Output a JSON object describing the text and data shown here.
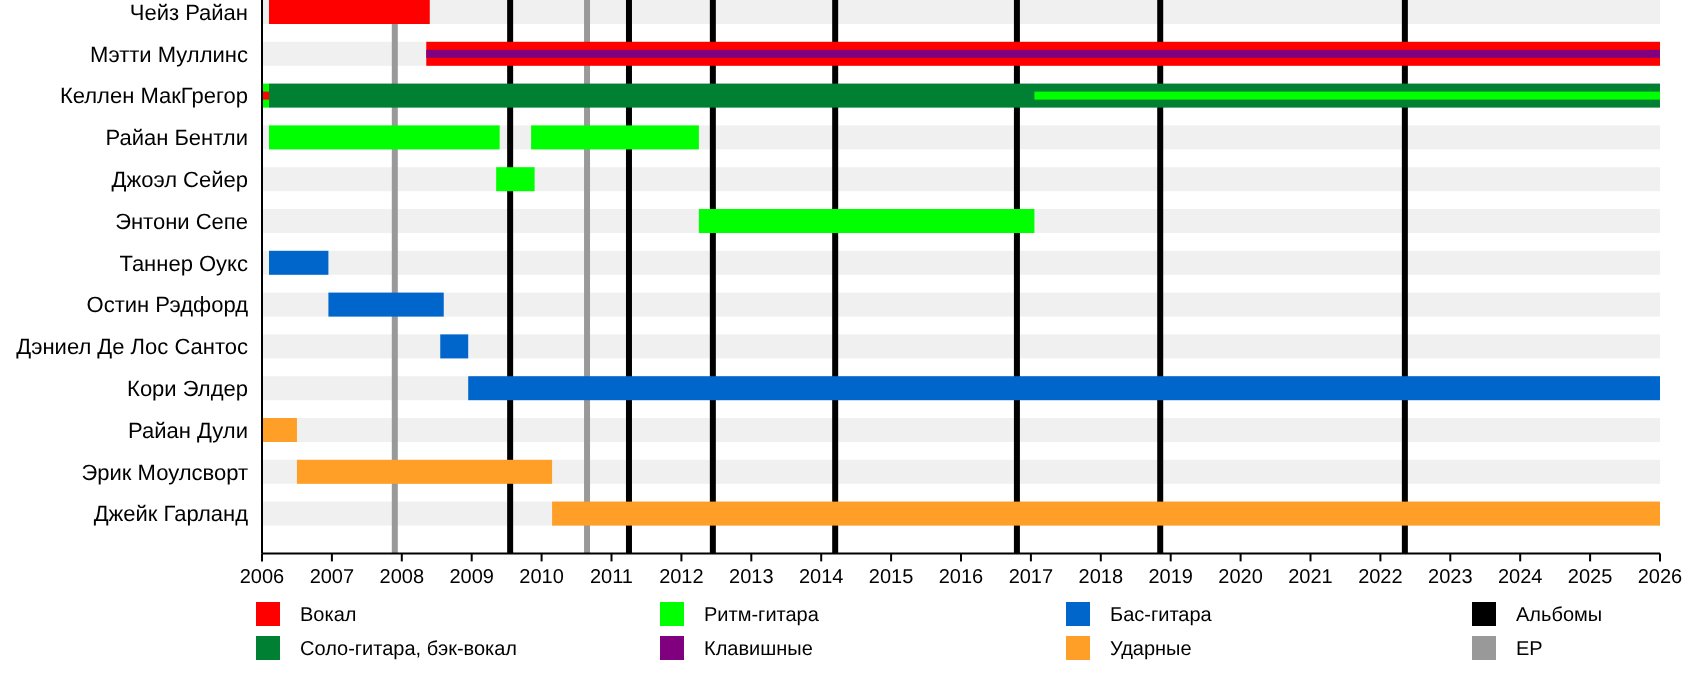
{
  "chart_data": {
    "type": "bar",
    "orientation": "horizontal",
    "categories": [
      "Чейз Райан",
      "Мэтти Муллинс",
      "Келлен МакГрегор",
      "Райан Бентли",
      "Джоэл Сейер",
      "Энтони Сепе",
      "Таннер Оукс",
      "Остин Рэдфорд",
      "Дэниел Де Лос Сантос",
      "Кори Элдер",
      "Райан Дули",
      "Эрик Моулсворт",
      "Джейк Гарланд"
    ],
    "series": [
      {
        "color": "#00ff00",
        "base": [
          null,
          null,
          2006,
          2009.85,
          null,
          null,
          null,
          null,
          null,
          null,
          null,
          null,
          null
        ],
        "values": [
          null,
          null,
          0.1,
          2.4,
          null,
          null,
          null,
          null,
          null,
          null,
          null,
          null,
          null
        ]
      },
      {
        "name": "Вокал",
        "color": "#ff0000",
        "base": [
          2006.1,
          2008.35,
          2006,
          null,
          null,
          null,
          null,
          null,
          null,
          null,
          null,
          null,
          null
        ],
        "values": [
          2.3,
          17.65,
          0.1,
          null,
          null,
          null,
          null,
          null,
          null,
          null,
          null,
          null,
          null
        ]
      },
      {
        "name": "Соло-гитара, бэк-вокал",
        "color": "#008033",
        "base": [
          null,
          null,
          2006.1,
          null,
          null,
          null,
          null,
          null,
          null,
          null,
          null,
          null,
          null
        ],
        "values": [
          null,
          null,
          19.9,
          null,
          null,
          null,
          null,
          null,
          null,
          null,
          null,
          null,
          null
        ]
      },
      {
        "name": "Ритм-гитара",
        "color": "#00ff00",
        "base": [
          null,
          null,
          2017.05,
          2006.1,
          2009.35,
          2012.25,
          null,
          null,
          null,
          null,
          null,
          null,
          null
        ],
        "values": [
          null,
          null,
          8.95,
          3.3,
          0.55,
          4.8,
          null,
          null,
          null,
          null,
          null,
          null,
          null
        ]
      },
      {
        "name": "Клавишные",
        "color": "#800080",
        "base": [
          null,
          2008.35,
          null,
          null,
          null,
          null,
          null,
          null,
          null,
          null,
          null,
          null,
          null
        ],
        "values": [
          null,
          17.65,
          null,
          null,
          null,
          null,
          null,
          null,
          null,
          null,
          null,
          null,
          null
        ]
      },
      {
        "name": "Бас-гитара",
        "color": "#0066cc",
        "base": [
          null,
          null,
          null,
          null,
          null,
          null,
          2006.1,
          2006.95,
          2008.55,
          2008.95,
          null,
          null,
          null
        ],
        "values": [
          null,
          null,
          null,
          null,
          null,
          null,
          0.85,
          1.65,
          0.4,
          17.05,
          null,
          null,
          null
        ]
      },
      {
        "name": "Ударные",
        "color": "#ff9f28",
        "base": [
          null,
          null,
          null,
          null,
          null,
          null,
          null,
          null,
          null,
          null,
          2006,
          2006.5,
          2010.15
        ],
        "values": [
          null,
          null,
          null,
          null,
          null,
          null,
          null,
          null,
          null,
          null,
          0.5,
          3.65,
          15.85
        ]
      }
    ],
    "xlim": [
      2006,
      2026
    ],
    "xticks": [
      2006,
      2007,
      2008,
      2009,
      2010,
      2011,
      2012,
      2013,
      2014,
      2015,
      2016,
      2017,
      2018,
      2019,
      2020,
      2021,
      2022,
      2023,
      2024,
      2025,
      2026
    ],
    "ref_lines": [
      {
        "axis": "x",
        "value": 2009.55,
        "label": "Альбомы",
        "color": "#000000"
      },
      {
        "axis": "x",
        "value": 2007.9,
        "label": "ЕР",
        "color": "#999999"
      },
      {
        "axis": "x",
        "value": 2010.65,
        "color": "#999999"
      },
      {
        "axis": "x",
        "value": 2011.25,
        "color": "#000000"
      },
      {
        "axis": "x",
        "value": 2012.45,
        "color": "#000000"
      },
      {
        "axis": "x",
        "value": 2014.2,
        "color": "#000000"
      },
      {
        "axis": "x",
        "value": 2016.8,
        "color": "#000000"
      },
      {
        "axis": "x",
        "value": 2018.85,
        "color": "#000000"
      },
      {
        "axis": "x",
        "value": 2022.35,
        "color": "#000000"
      }
    ],
    "legend": "bottom"
  }
}
